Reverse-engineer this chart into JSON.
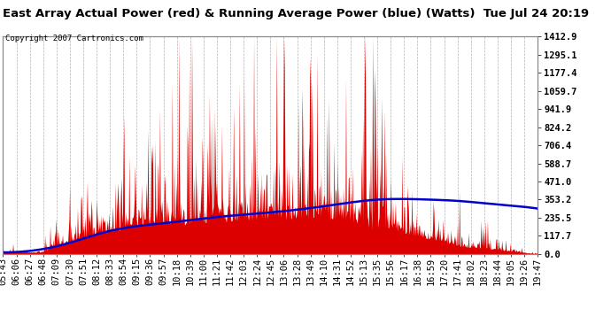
{
  "title": "East Array Actual Power (red) & Running Average Power (blue) (Watts)  Tue Jul 24 20:19",
  "copyright": "Copyright 2007 Cartronics.com",
  "background_color": "#ffffff",
  "plot_bg_color": "#ffffff",
  "grid_color": "#aaaaaa",
  "title_color": "#000000",
  "copyright_color": "#000000",
  "yticks": [
    0.0,
    117.7,
    235.5,
    353.2,
    471.0,
    588.7,
    706.4,
    824.2,
    941.9,
    1059.7,
    1177.4,
    1295.1,
    1412.9
  ],
  "ylim": [
    0,
    1412.9
  ],
  "xtick_labels": [
    "05:43",
    "06:06",
    "06:27",
    "06:48",
    "07:09",
    "07:30",
    "07:51",
    "08:12",
    "08:33",
    "08:54",
    "09:15",
    "09:36",
    "09:57",
    "10:18",
    "10:39",
    "11:00",
    "11:21",
    "11:42",
    "12:03",
    "12:24",
    "12:45",
    "13:06",
    "13:28",
    "13:49",
    "14:10",
    "14:31",
    "14:52",
    "15:13",
    "15:35",
    "15:56",
    "16:17",
    "16:38",
    "16:59",
    "17:20",
    "17:41",
    "18:02",
    "18:23",
    "18:44",
    "19:05",
    "19:26",
    "19:47"
  ],
  "red_color": "#dd0000",
  "blue_color": "#0000cc",
  "tick_label_color": "#000000",
  "tick_fontsize": 7.5,
  "title_fontsize": 9.5,
  "copyright_fontsize": 6.5
}
